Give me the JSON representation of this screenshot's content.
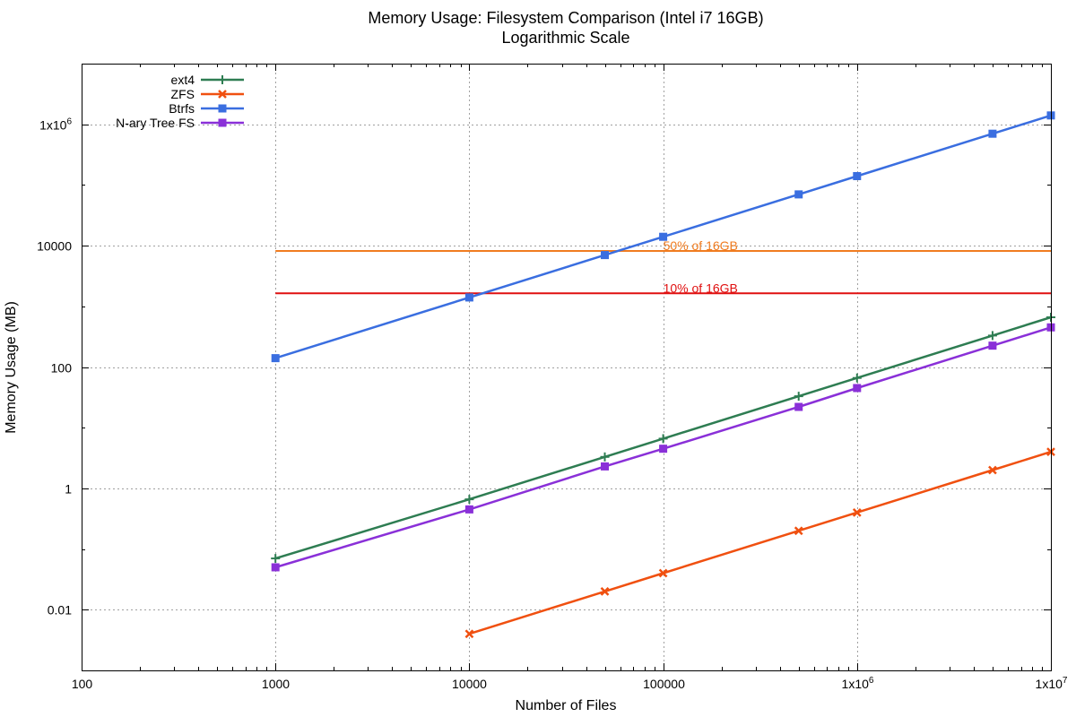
{
  "chart_data": {
    "type": "line",
    "title": "Memory Usage: Filesystem Comparison (Intel i7 16GB)",
    "subtitle": "Logarithmic Scale",
    "xlabel": "Number of Files",
    "ylabel": "Memory Usage (MB)",
    "x_scale": "log",
    "y_scale": "log",
    "xlim": [
      100,
      10000000
    ],
    "ylim": [
      0.001,
      10000000
    ],
    "grid": true,
    "legend_position": "top-left",
    "x_ticks": [
      {
        "value": 100,
        "label": "100"
      },
      {
        "value": 1000,
        "label": "1000"
      },
      {
        "value": 10000,
        "label": "10000"
      },
      {
        "value": 100000,
        "label": "100000"
      },
      {
        "value": 1000000,
        "label": "1x10",
        "sup": "6"
      },
      {
        "value": 10000000,
        "label": "1x10",
        "sup": "7"
      }
    ],
    "y_ticks": [
      {
        "value": 0.01,
        "label": "0.01"
      },
      {
        "value": 1,
        "label": "1"
      },
      {
        "value": 100,
        "label": "100"
      },
      {
        "value": 10000,
        "label": "10000"
      },
      {
        "value": 1000000,
        "label": "1x10",
        "sup": "6"
      }
    ],
    "series": [
      {
        "name": "ext4",
        "color": "#2e7d52",
        "marker": "plus",
        "x": [
          1000,
          10000,
          50000,
          100000,
          500000,
          1000000,
          5000000,
          10000000
        ],
        "y": [
          0.07,
          0.66,
          3.3,
          6.6,
          33,
          66,
          330,
          660
        ]
      },
      {
        "name": "ZFS",
        "color": "#f05010",
        "marker": "cross",
        "x": [
          10000,
          50000,
          100000,
          500000,
          1000000,
          5000000,
          10000000
        ],
        "y": [
          0.004,
          0.02,
          0.04,
          0.2,
          0.4,
          2,
          4
        ]
      },
      {
        "name": "Btrfs",
        "color": "#3a6ee0",
        "marker": "square",
        "x": [
          1000,
          10000,
          50000,
          100000,
          500000,
          1000000,
          5000000,
          10000000
        ],
        "y": [
          140,
          1400,
          7000,
          14000,
          70000,
          140000,
          700000,
          1400000
        ]
      },
      {
        "name": "N-ary Tree FS",
        "color": "#8a30d8",
        "marker": "square",
        "x": [
          1000,
          10000,
          50000,
          100000,
          500000,
          1000000,
          5000000,
          10000000
        ],
        "y": [
          0.05,
          0.45,
          2.3,
          4.5,
          22,
          45,
          225,
          450
        ]
      }
    ],
    "reference_lines": [
      {
        "label": "50% of 16GB",
        "y": 8192,
        "color": "#f07c20",
        "x_start": 1000,
        "label_x": 100000
      },
      {
        "label": "10% of 16GB",
        "y": 1638,
        "color": "#e01010",
        "x_start": 1000,
        "label_x": 100000
      }
    ]
  }
}
